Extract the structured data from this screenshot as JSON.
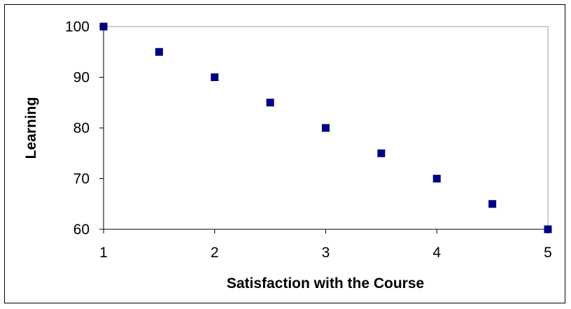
{
  "chart_data": {
    "type": "scatter",
    "title": "",
    "xlabel": "Satisfaction with the Course",
    "ylabel": "Learning",
    "xlim": [
      1,
      5
    ],
    "ylim": [
      60,
      100
    ],
    "xticks": [
      1,
      2,
      3,
      4,
      5
    ],
    "yticks": [
      60,
      70,
      80,
      90,
      100
    ],
    "grid": false,
    "legend": "none",
    "marker": "square",
    "marker_color": "#000080",
    "series": [
      {
        "x": [
          1,
          1.5,
          2,
          2.5,
          3,
          3.5,
          4,
          4.5,
          5
        ],
        "y": [
          100,
          95,
          90,
          85,
          80,
          75,
          70,
          65,
          60
        ]
      }
    ]
  }
}
